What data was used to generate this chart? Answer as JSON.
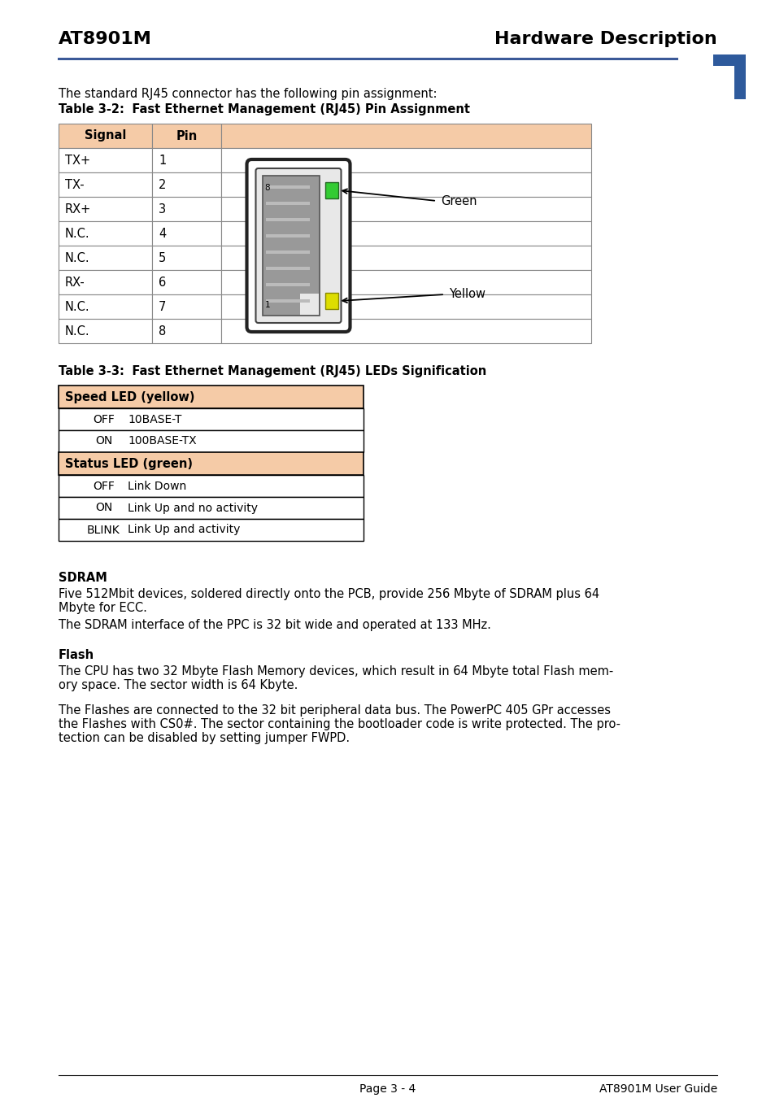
{
  "page_title_left": "AT8901M",
  "page_title_right": "Hardware Description",
  "header_line_color": "#3B5998",
  "corner_mark_color": "#2E5A9C",
  "intro_text": "The standard RJ45 connector has the following pin assignment:",
  "table1_caption_bold": "Table 3-2:",
  "table1_caption_rest": "   Fast Ethernet Management (RJ45) Pin Assignment",
  "table1_header": [
    "Signal",
    "Pin"
  ],
  "table1_header_bg": "#F5CBA7",
  "table1_rows": [
    [
      "TX+",
      "1"
    ],
    [
      "TX-",
      "2"
    ],
    [
      "RX+",
      "3"
    ],
    [
      "N.C.",
      "4"
    ],
    [
      "N.C.",
      "5"
    ],
    [
      "RX-",
      "6"
    ],
    [
      "N.C.",
      "7"
    ],
    [
      "N.C.",
      "8"
    ]
  ],
  "table1_border_color": "#888888",
  "table2_caption_bold": "Table 3-3:",
  "table2_caption_rest": "   Fast Ethernet Management (RJ45) LEDs Signification",
  "table2_sections": [
    {
      "header": "Speed LED (yellow)",
      "rows": [
        [
          "OFF",
          "10BASE-T"
        ],
        [
          "ON",
          "100BASE-TX"
        ]
      ]
    },
    {
      "header": "Status LED (green)",
      "rows": [
        [
          "OFF",
          "Link Down"
        ],
        [
          "ON",
          "Link Up and no activity"
        ],
        [
          "BLINK",
          "Link Up and activity"
        ]
      ]
    }
  ],
  "table2_header_bg": "#F5CBA7",
  "table2_border_color": "#000000",
  "sdram_heading": "SDRAM",
  "sdram_para1": "Five 512Mbit devices, soldered directly onto the PCB, provide 256 Mbyte of SDRAM plus 64 Mbyte for ECC.",
  "sdram_para2": "The SDRAM interface of the PPC is 32 bit wide and operated at 133 MHz.",
  "flash_heading": "Flash",
  "flash_para1": "The CPU has two 32 Mbyte Flash Memory devices, which result in 64 Mbyte total Flash mem-\nory space. The sector width is 64 Kbyte.",
  "flash_para2": "The Flashes are connected to the 32 bit peripheral data bus. The PowerPC 405 GPr accesses\nthe Flashes with CS0#. The sector containing the bootloader code is write protected. The pro-\ntection can be disabled by setting jumper FWPD.",
  "footer_left": "Page 3 - 4",
  "footer_right": "AT8901M User Guide",
  "footer_line_color": "#000000",
  "bg_color": "#FFFFFF",
  "text_color": "#000000"
}
